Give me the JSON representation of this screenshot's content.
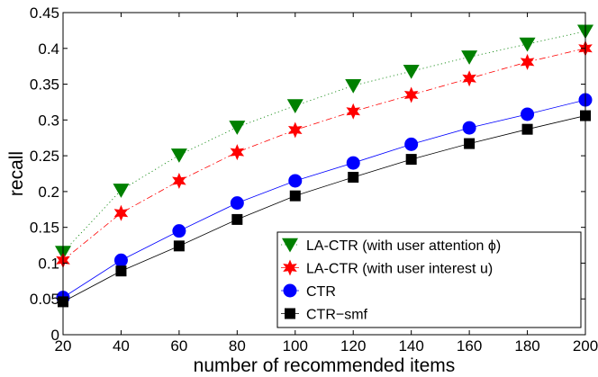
{
  "chart_data": {
    "type": "line",
    "title": "",
    "xlabel": "number of recommended items",
    "ylabel": "recall",
    "x": [
      20,
      40,
      60,
      80,
      100,
      120,
      140,
      160,
      180,
      200
    ],
    "xlim": [
      20,
      200
    ],
    "ylim": [
      0,
      0.45
    ],
    "xticks": [
      20,
      40,
      60,
      80,
      100,
      120,
      140,
      160,
      180,
      200
    ],
    "xtick_labels": [
      "20",
      "40",
      "60",
      "80",
      "100",
      "120",
      "140",
      "160",
      "180",
      "200"
    ],
    "yticks": [
      0,
      0.05,
      0.1,
      0.15,
      0.2,
      0.25,
      0.3,
      0.35,
      0.4,
      0.45
    ],
    "ytick_labels": [
      "0",
      "0.05",
      "0.1",
      "0.15",
      "0.2",
      "0.25",
      "0.3",
      "0.35",
      "0.4",
      "0.45"
    ],
    "grid": false,
    "legend_position": "bottom-right",
    "series": [
      {
        "name": "LA-CTR (with user attention ϕ)",
        "color": "#008000",
        "marker": "triangle-down",
        "line_style": "dotted",
        "values": [
          0.115,
          0.202,
          0.251,
          0.29,
          0.32,
          0.348,
          0.368,
          0.388,
          0.406,
          0.424
        ]
      },
      {
        "name": "LA-CTR (with user interest u)",
        "color": "#ff0000",
        "marker": "hexagram",
        "line_style": "dashdot",
        "values": [
          0.104,
          0.17,
          0.215,
          0.255,
          0.286,
          0.312,
          0.335,
          0.358,
          0.381,
          0.4
        ]
      },
      {
        "name": "CTR",
        "color": "#0000ff",
        "marker": "circle",
        "line_style": "solid",
        "values": [
          0.052,
          0.104,
          0.145,
          0.184,
          0.215,
          0.24,
          0.266,
          0.289,
          0.308,
          0.328
        ]
      },
      {
        "name": "CTR−smf",
        "color": "#000000",
        "marker": "square",
        "line_style": "solid",
        "values": [
          0.046,
          0.089,
          0.124,
          0.161,
          0.194,
          0.22,
          0.245,
          0.267,
          0.287,
          0.306
        ]
      }
    ]
  }
}
